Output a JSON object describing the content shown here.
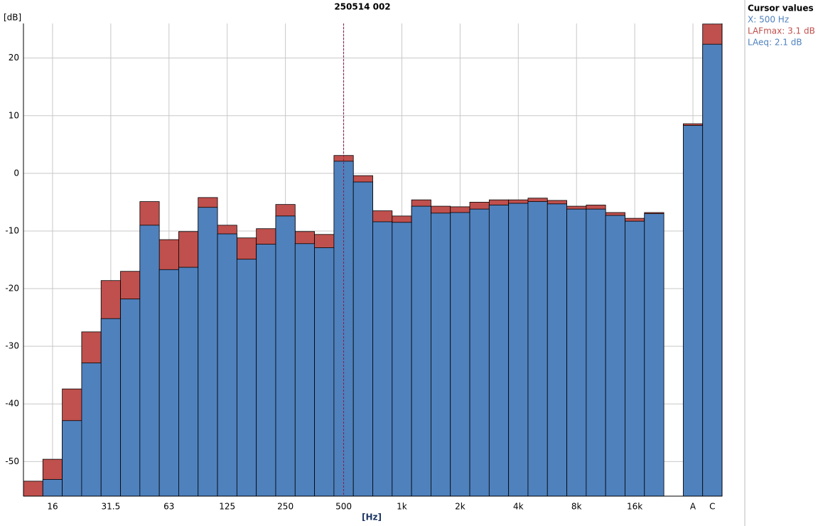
{
  "chart_data": {
    "type": "bar",
    "title": "250514 002",
    "y_label": "[dB]",
    "x_label": "[Hz]",
    "categories": [
      null,
      "16",
      null,
      null,
      "31.5",
      null,
      null,
      "63",
      null,
      null,
      "125",
      null,
      null,
      "250",
      null,
      null,
      "500",
      null,
      null,
      "1k",
      null,
      null,
      "2k",
      null,
      null,
      "4k",
      null,
      null,
      "8k",
      null,
      null,
      "16k",
      null,
      null,
      "A",
      "C"
    ],
    "series": [
      {
        "name": "LAFmax",
        "color": "#c0504d",
        "values": [
          -53.4,
          -49.6,
          -37.4,
          -27.5,
          -18.6,
          -17.0,
          -4.9,
          -11.5,
          -10.1,
          -4.2,
          -9.0,
          -11.2,
          -9.6,
          -5.4,
          -10.1,
          -10.6,
          3.1,
          -0.4,
          -6.5,
          -7.4,
          -4.6,
          -5.7,
          -5.8,
          -5.0,
          -4.6,
          -4.6,
          -4.3,
          -4.7,
          -5.7,
          -5.5,
          -6.8,
          -7.8,
          -6.8,
          null,
          8.6,
          25.9
        ]
      },
      {
        "name": "LAeq",
        "color": "#4f81bd",
        "values": [
          null,
          -53.1,
          -42.9,
          -32.9,
          -25.2,
          -21.8,
          -9.0,
          -16.7,
          -16.3,
          -5.9,
          -10.5,
          -14.9,
          -12.3,
          -7.4,
          -12.2,
          -12.9,
          2.1,
          -1.5,
          -8.4,
          -8.5,
          -5.7,
          -6.9,
          -6.8,
          -6.2,
          -5.5,
          -5.2,
          -4.9,
          -5.3,
          -6.2,
          -6.2,
          -7.3,
          -8.3,
          -7.0,
          null,
          8.3,
          22.4
        ]
      }
    ],
    "ylim": [
      -56,
      26
    ],
    "yticks": [
      -50,
      -40,
      -30,
      -20,
      -10,
      0,
      10,
      20
    ],
    "grid": true,
    "cursor": {
      "title": "Cursor values",
      "lines": [
        "X: 500 Hz",
        "LAFmax: 3.1 dB",
        "LAeq: 2.1 dB"
      ]
    }
  }
}
